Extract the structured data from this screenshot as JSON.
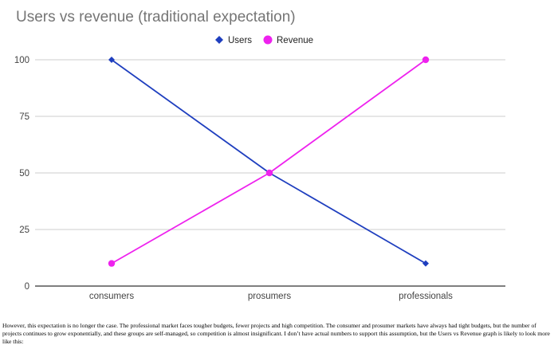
{
  "chart_data": {
    "type": "line",
    "title": "Users vs revenue (traditional expectation)",
    "xlabel": "",
    "ylabel": "",
    "categories": [
      "consumers",
      "prosumers",
      "professionals"
    ],
    "series": [
      {
        "name": "Users",
        "values": [
          100,
          50,
          10
        ],
        "color": "#1f3fbf",
        "marker": "diamond"
      },
      {
        "name": "Revenue",
        "values": [
          10,
          50,
          100
        ],
        "color": "#ee22ee",
        "marker": "circle"
      }
    ],
    "ylim": [
      0,
      100
    ],
    "yticks": [
      "0",
      "25",
      "50",
      "75",
      "100"
    ],
    "grid": true,
    "legend_position": "top-center"
  },
  "caption": "However, this expectation is no longer the case. The professional market faces tougher budgets, fewer projects and high competition. The consumer and prosumer markets have always had tight budgets, but the number of projects continues to grow exponentially, and these groups are self-managed, so competition is almost insignificant. I don’t have actual numbers to support this assumption, but the Users vs Revenue graph is likely to look more like this:"
}
